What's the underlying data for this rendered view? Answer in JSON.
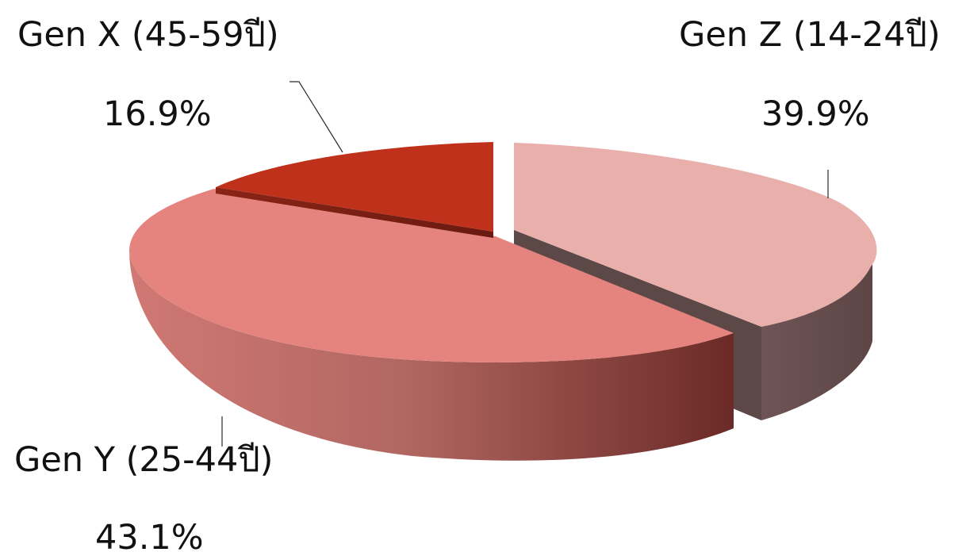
{
  "chart_data": {
    "type": "pie",
    "style": "3d-exploded",
    "slices": [
      {
        "name": "Gen Z (14-24ปี)",
        "percent_label": "39.9%",
        "value": 39.9,
        "color_top": "#E8AFAB",
        "color_side": "#655050"
      },
      {
        "name": "Gen Y (25-44ปี)",
        "percent_label": "43.1%",
        "value": 43.1,
        "color_top": "#E5847E",
        "color_side": "#B06360"
      },
      {
        "name": "Gen X (45-59ปี)",
        "percent_label": "16.9%",
        "value": 16.9,
        "color_top": "#BF311B",
        "color_side": "#7A1F12"
      }
    ]
  }
}
